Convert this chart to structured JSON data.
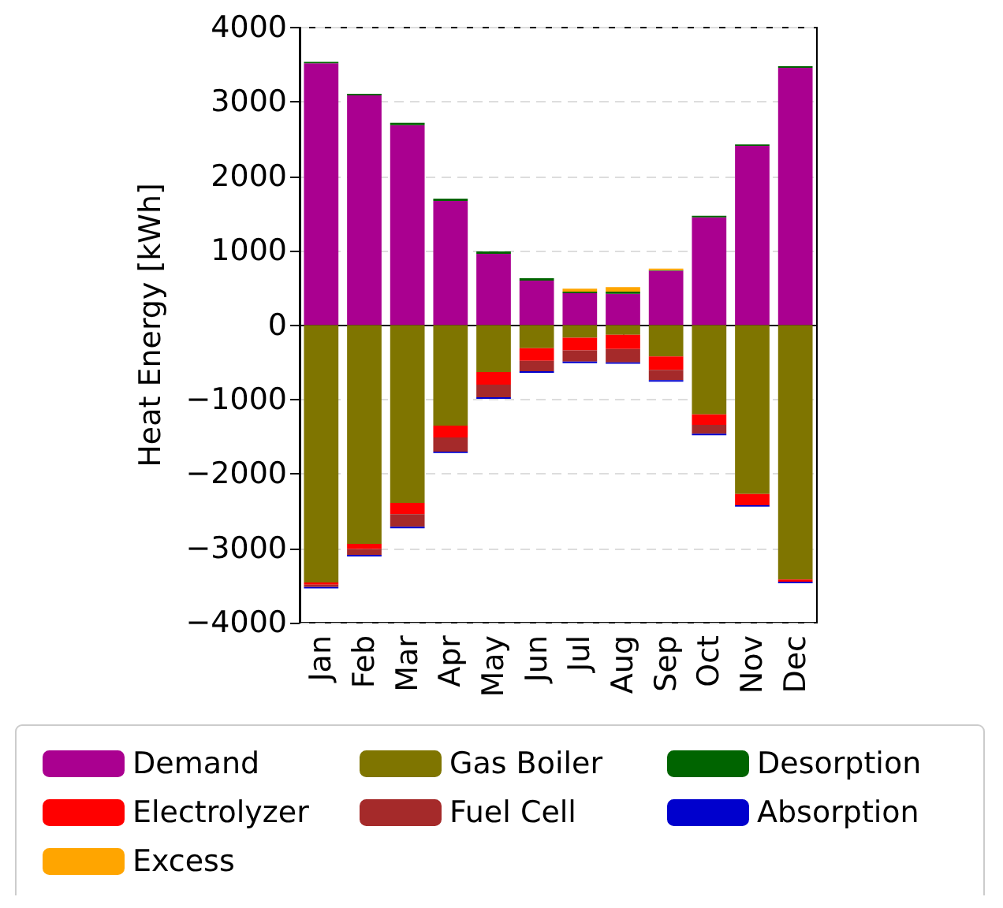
{
  "chart_data": {
    "type": "bar",
    "stacked": true,
    "ylabel": "Heat Energy [kWh]",
    "categories": [
      "Jan",
      "Feb",
      "Mar",
      "Apr",
      "May",
      "Jun",
      "Jul",
      "Aug",
      "Sep",
      "Oct",
      "Nov",
      "Dec"
    ],
    "series": [
      {
        "name": "Demand",
        "color": "#aa0090",
        "values": [
          3520,
          3090,
          2690,
          1670,
          960,
          600,
          430,
          420,
          730,
          1450,
          2410,
          3460
        ]
      },
      {
        "name": "Gas Boiler",
        "color": "#7f7500",
        "values": [
          -3460,
          -2940,
          -2390,
          -1350,
          -630,
          -310,
          -170,
          -130,
          -420,
          -1200,
          -2270,
          -3420
        ]
      },
      {
        "name": "Desorption",
        "color": "#006400",
        "values": [
          20,
          20,
          30,
          30,
          30,
          30,
          20,
          30,
          10,
          20,
          20,
          20
        ]
      },
      {
        "name": "Electrolyzer",
        "color": "#ff0000",
        "values": [
          -30,
          -70,
          -150,
          -160,
          -170,
          -170,
          -170,
          -190,
          -180,
          -140,
          -150,
          -30
        ]
      },
      {
        "name": "Fuel Cell",
        "color": "#a52a2a",
        "values": [
          -30,
          -80,
          -170,
          -190,
          -170,
          -140,
          -150,
          -180,
          -140,
          -120,
          0,
          0
        ]
      },
      {
        "name": "Absorption",
        "color": "#0000cd",
        "values": [
          -20,
          -20,
          -20,
          -20,
          -20,
          -20,
          -20,
          -20,
          -20,
          -20,
          -20,
          -20
        ]
      },
      {
        "name": "Excess",
        "color": "#ffa500",
        "values": [
          0,
          0,
          0,
          0,
          0,
          0,
          40,
          60,
          20,
          0,
          0,
          0
        ]
      }
    ],
    "ylim": [
      -4000,
      4000
    ],
    "yticks": [
      -4000,
      -3000,
      -2000,
      -1000,
      0,
      1000,
      2000,
      3000,
      4000
    ],
    "grid": "y",
    "legend": "bottom"
  }
}
